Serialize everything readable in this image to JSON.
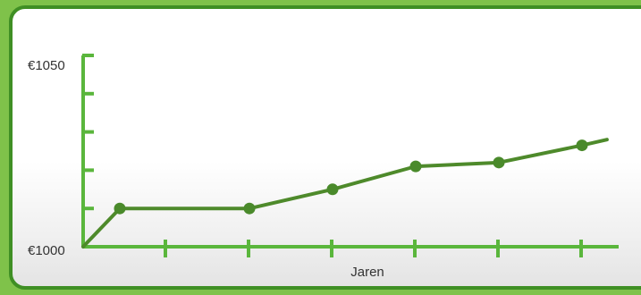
{
  "chart_data": {
    "type": "line",
    "xlabel": "Jaren",
    "ylabel": "",
    "ylim": [
      1000,
      1050
    ],
    "y_tick_labels": [
      "€1000",
      "€1050"
    ],
    "x_tick_count": 6,
    "x": [
      0,
      1,
      2,
      3,
      4,
      5,
      6,
      6.3
    ],
    "markers": [
      false,
      true,
      true,
      true,
      true,
      true,
      true,
      false
    ],
    "y": [
      1000,
      1010,
      1010,
      1015,
      1021,
      1022,
      1026.5,
      1028
    ],
    "grid": false,
    "colors": {
      "line": "#4e8a2b",
      "marker": "#4a8a2b",
      "axis": "#5ab63c",
      "frame": "#3f8f24",
      "background": "#7fc24a"
    }
  }
}
